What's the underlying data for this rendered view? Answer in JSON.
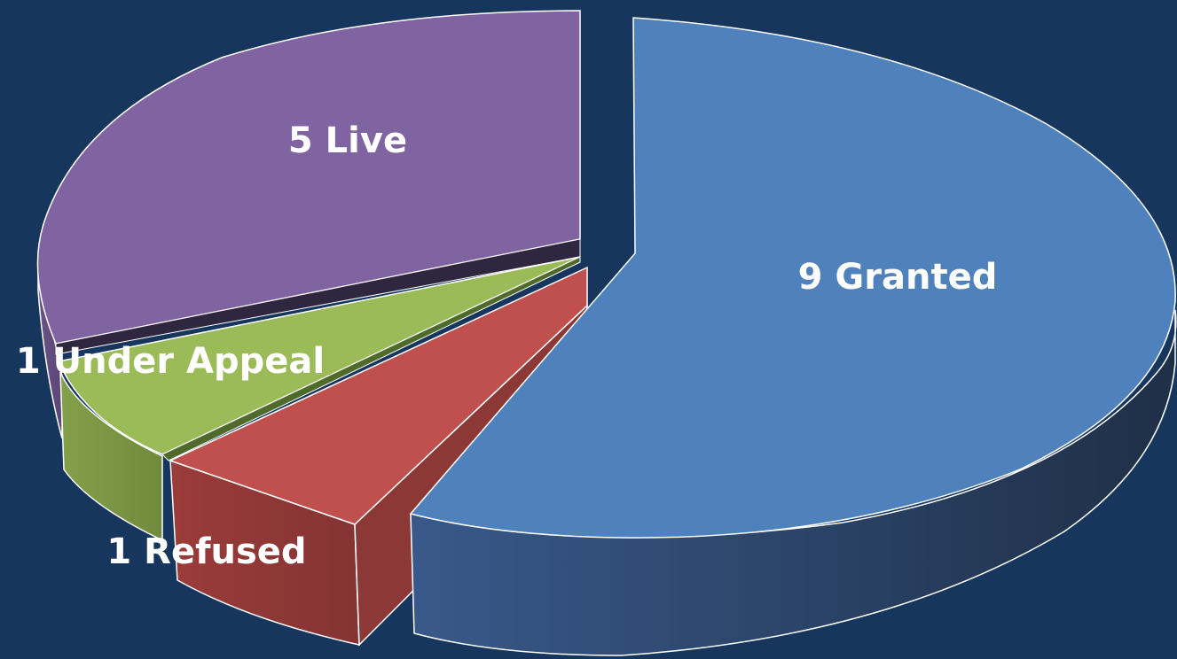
{
  "chart_data": {
    "type": "pie",
    "style": "3d-exploded",
    "slices": [
      {
        "value": 9,
        "label": "9 Granted",
        "color": "#4f81bd"
      },
      {
        "value": 1,
        "label": "1 Refused",
        "color": "#c0504d"
      },
      {
        "value": 1,
        "label": "1 Under Appeal",
        "color": "#9bbb59"
      },
      {
        "value": 5,
        "label": "5 Live",
        "color": "#8064a2"
      }
    ],
    "background": "#17365d",
    "edge_color": "#ffffff"
  }
}
